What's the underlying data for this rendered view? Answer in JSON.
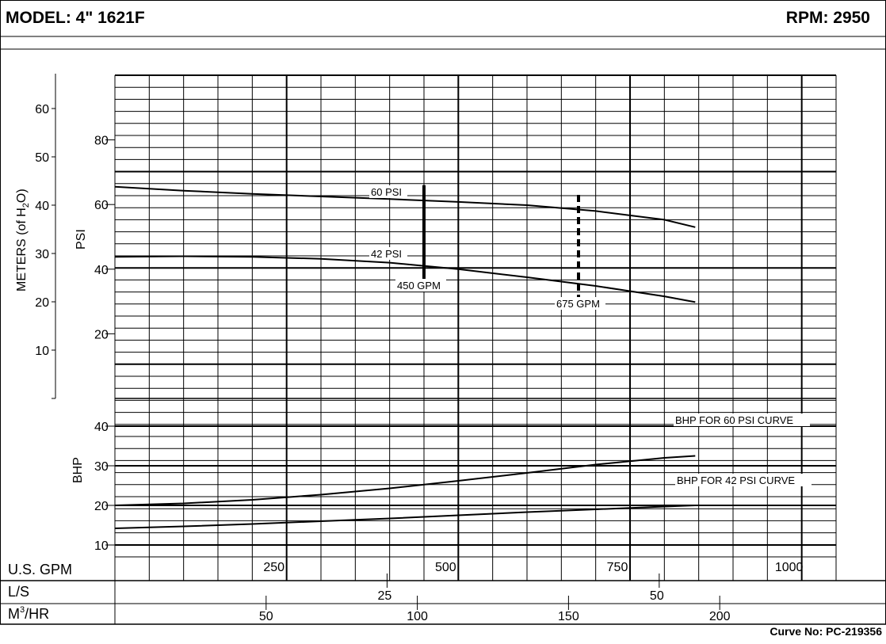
{
  "header": {
    "model": "MODEL: 4\" 1621F",
    "rpm": "RPM: 2950"
  },
  "footer": {
    "curve_no": "Curve No: PC-219356"
  },
  "chart_data": {
    "type": "line",
    "x_scales": [
      {
        "label": "U.S. GPM",
        "ticks": [
          250,
          500,
          750,
          1000
        ]
      },
      {
        "label": "L/S",
        "ticks": [
          25,
          50
        ]
      },
      {
        "label": "M³/HR",
        "label_base": "M",
        "label_sup": "3",
        "label_tail": "/HR",
        "ticks": [
          50,
          100,
          150,
          200
        ]
      }
    ],
    "xlim": [
      0,
      1050
    ],
    "pressure_panel": {
      "ylabel": "PSI",
      "ylim": [
        0,
        100
      ],
      "ticks": [
        20,
        40,
        60,
        80
      ],
      "meters_axis": {
        "label_prefix": "METERS (of H",
        "label_sub": "2",
        "label_suffix": "O)",
        "ticks": [
          10,
          20,
          30,
          40,
          50,
          60
        ]
      },
      "series": [
        {
          "name": "60 PSI",
          "x": [
            0,
            100,
            200,
            300,
            400,
            500,
            600,
            700,
            800,
            845
          ],
          "y": [
            65.5,
            64.3,
            63.3,
            62.5,
            61.7,
            60.8,
            59.8,
            58.0,
            55.3,
            53.0
          ]
        },
        {
          "name": "42 PSI",
          "x": [
            0,
            100,
            200,
            300,
            400,
            500,
            600,
            700,
            800,
            845
          ],
          "y": [
            43.8,
            44.0,
            43.8,
            43.2,
            42.0,
            40.0,
            37.5,
            34.8,
            31.6,
            29.8
          ]
        }
      ],
      "markers": [
        {
          "label": "450 GPM",
          "x": 450,
          "y_range": [
            35,
            66
          ],
          "style": "solid"
        },
        {
          "label": "675 GPM",
          "x": 675,
          "y_range": [
            31,
            63
          ],
          "style": "dashed"
        }
      ]
    },
    "bhp_panel": {
      "ylabel": "BHP",
      "ylim": [
        7,
        47
      ],
      "ticks": [
        10,
        20,
        30,
        40
      ],
      "series": [
        {
          "name": "BHP FOR 60 PSI CURVE",
          "x": [
            0,
            100,
            200,
            300,
            400,
            500,
            600,
            700,
            800,
            845
          ],
          "y": [
            20.0,
            20.5,
            21.4,
            22.7,
            24.3,
            26.2,
            28.2,
            30.3,
            32.0,
            32.5
          ]
        },
        {
          "name": "BHP FOR 42 PSI CURVE",
          "x": [
            0,
            100,
            200,
            300,
            400,
            500,
            600,
            700,
            800,
            845
          ],
          "y": [
            14.2,
            14.7,
            15.3,
            16.0,
            16.7,
            17.5,
            18.3,
            19.0,
            19.7,
            20.0
          ]
        }
      ]
    }
  }
}
